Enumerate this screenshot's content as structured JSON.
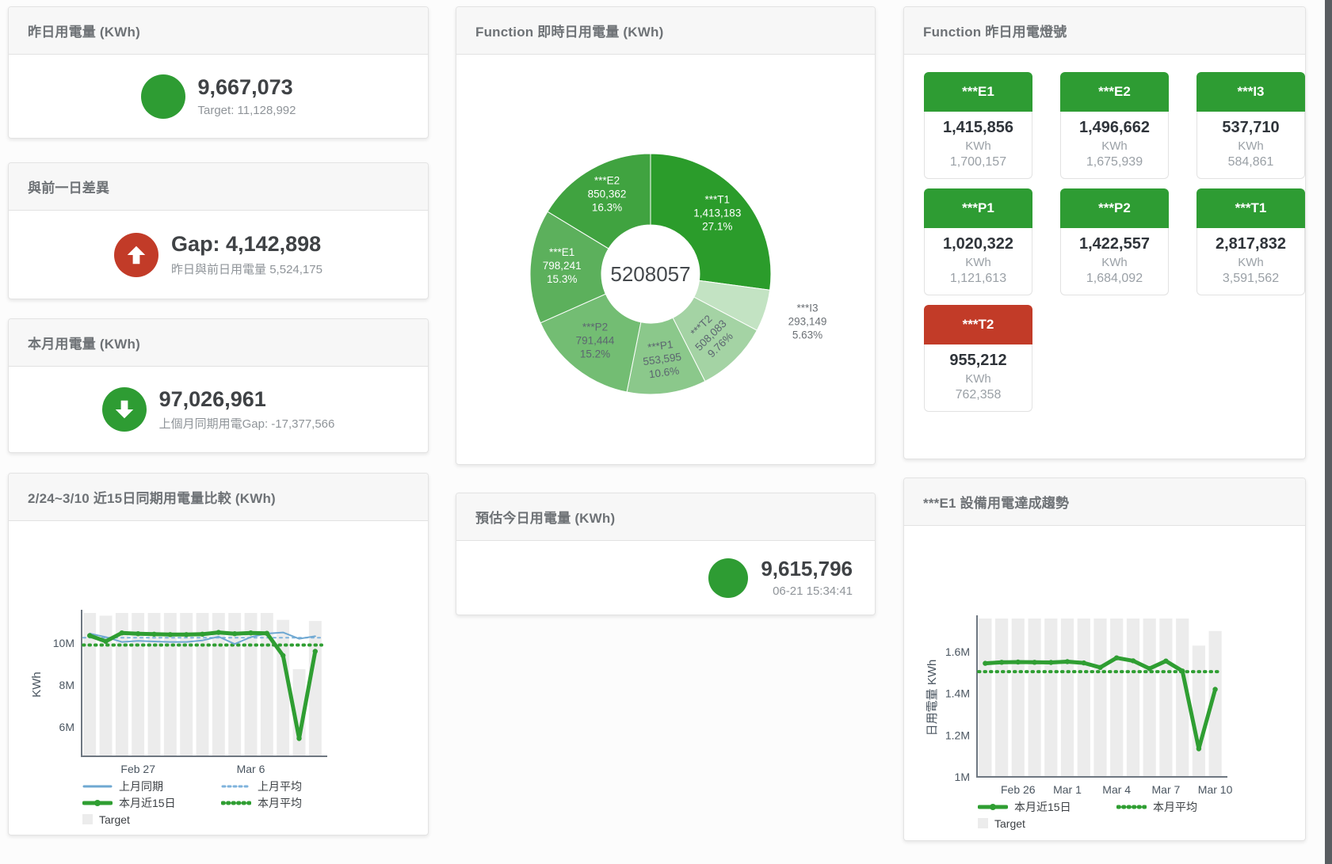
{
  "colors": {
    "green": "#2e9c33",
    "red": "#c23b28",
    "blue_line": "#6fa8d2",
    "blue_dotted": "#7fb3dc",
    "green_line": "#2f9e32",
    "target_bar": "#ececec"
  },
  "cards": {
    "yesterday": {
      "title": "昨日用電量 (KWh)",
      "value": "9,667,073",
      "sub": "Target: 11,128,992"
    },
    "gap": {
      "title": "與前一日差異",
      "value": "Gap: 4,142,898",
      "sub": "昨日與前日用電量 5,524,175"
    },
    "month": {
      "title": "本月用電量 (KWh)",
      "value": "97,026,961",
      "sub": "上個月同期用電Gap: -17,377,566"
    },
    "compare": {
      "title": "2/24~3/10 近15日同期用電量比較 (KWh)"
    },
    "realtime": {
      "title": "Function 即時日用電量 (KWh)",
      "center_total": "5208057"
    },
    "estimate": {
      "title": "預估今日用電量 (KWh)",
      "value": "9,615,796",
      "time": "06-21 15:34:41"
    },
    "lights": {
      "title": "Function 昨日用電燈號",
      "unit": "KWh",
      "tiles": [
        {
          "name": "***E1",
          "value": "1,415,856",
          "target": "1,700,157",
          "status": "green"
        },
        {
          "name": "***E2",
          "value": "1,496,662",
          "target": "1,675,939",
          "status": "green"
        },
        {
          "name": "***I3",
          "value": "537,710",
          "target": "584,861",
          "status": "green"
        },
        {
          "name": "***P1",
          "value": "1,020,322",
          "target": "1,121,613",
          "status": "green"
        },
        {
          "name": "***P2",
          "value": "1,422,557",
          "target": "1,684,092",
          "status": "green"
        },
        {
          "name": "***T1",
          "value": "2,817,832",
          "target": "3,591,562",
          "status": "green"
        },
        {
          "name": "***T2",
          "value": "955,212",
          "target": "762,358",
          "status": "red"
        }
      ]
    },
    "trend": {
      "title": "***E1 設備用電達成趨勢"
    }
  },
  "chart_data": [
    {
      "type": "pie",
      "title": "Function 即時日用電量 (KWh)",
      "center_total": "5208057",
      "slices": [
        {
          "name": "***T1",
          "value": 1413183,
          "pct": "27.1%",
          "color": "#2b9c2b",
          "label_pos": "inside",
          "label_color": "#ffffff"
        },
        {
          "name": "***I3",
          "value": 293149,
          "pct": "5.63%",
          "color": "#c3e3c3",
          "label_pos": "outside",
          "label_color": "#6b7075"
        },
        {
          "name": "***T2",
          "value": 508083,
          "pct": "9.76%",
          "color": "#a4d3a4",
          "label_pos": "inside",
          "label_color": "#5c6670"
        },
        {
          "name": "***P1",
          "value": 553595,
          "pct": "10.6%",
          "color": "#8bc88b",
          "label_pos": "inside",
          "label_color": "#5c6670"
        },
        {
          "name": "***P2",
          "value": 791444,
          "pct": "15.2%",
          "color": "#73bd73",
          "label_pos": "inside",
          "label_color": "#5c6670"
        },
        {
          "name": "***E1",
          "value": 798241,
          "pct": "15.3%",
          "color": "#5cb05c",
          "label_pos": "inside",
          "label_color": "#ffffff"
        },
        {
          "name": "***E2",
          "value": 850362,
          "pct": "16.3%",
          "color": "#40a340",
          "label_pos": "inside",
          "label_color": "#ffffff"
        }
      ]
    },
    {
      "type": "bar",
      "title": "2/24~3/10 近15日同期用電量比較 (KWh)",
      "ylabel": "KWh",
      "y_min": 4600000,
      "y_max": 11430000,
      "y_ticks": [
        {
          "value": 6000000,
          "label": "6M"
        },
        {
          "value": 8000000,
          "label": "8M"
        },
        {
          "value": 10000000,
          "label": "10M"
        }
      ],
      "x_ticks": [
        {
          "index": 3,
          "label": "Feb 27"
        },
        {
          "index": 10,
          "label": "Mar 6"
        }
      ],
      "target_bars": {
        "name": "Target",
        "color": "#ececec",
        "values": [
          11430000,
          11300000,
          11430000,
          11430000,
          11430000,
          11430000,
          11430000,
          11430000,
          11430000,
          11430000,
          11430000,
          11430000,
          11100000,
          8750000,
          11050000
        ]
      },
      "series": [
        {
          "name": "上月同期",
          "color": "#6fa8d2",
          "thick": false,
          "dotted": false,
          "marker": false,
          "values": [
            10450000,
            10280000,
            10050000,
            10100000,
            10070000,
            10050000,
            10050000,
            10120000,
            10300000,
            9950000,
            10280000,
            10450000,
            10500000,
            10200000,
            10320000
          ]
        },
        {
          "name": "上月平均",
          "color": "#7fb3dc",
          "thick": false,
          "dotted": true,
          "constant": 10250000
        },
        {
          "name": "本月近15日",
          "color": "#2f9e32",
          "thick": true,
          "dotted": false,
          "marker": true,
          "values": [
            10350000,
            10080000,
            10480000,
            10440000,
            10420000,
            10400000,
            10400000,
            10420000,
            10500000,
            10440000,
            10480000,
            10460000,
            9400000,
            5450000,
            9600000
          ]
        },
        {
          "name": "本月平均",
          "color": "#2f9e32",
          "thick": true,
          "dotted": true,
          "constant": 9900000
        }
      ],
      "legend": [
        [
          {
            "label": "上月同期",
            "swatch": "line",
            "color": "#6fa8d2",
            "thick": false,
            "dotted": false
          },
          {
            "label": "上月平均",
            "swatch": "line",
            "color": "#7fb3dc",
            "thick": false,
            "dotted": true
          }
        ],
        [
          {
            "label": "本月近15日",
            "swatch": "line",
            "color": "#2f9e32",
            "thick": true,
            "dotted": false
          },
          {
            "label": "本月平均",
            "swatch": "line",
            "color": "#2f9e32",
            "thick": true,
            "dotted": true
          }
        ],
        [
          {
            "label": "Target",
            "swatch": "box",
            "color": "#ececec"
          }
        ]
      ]
    },
    {
      "type": "bar",
      "title": "***E1 設備用電達成趨勢",
      "ylabel": "日用電量 KWh",
      "y_min": 1000000,
      "y_max": 1760000,
      "y_ticks": [
        {
          "value": 1000000,
          "label": "1M"
        },
        {
          "value": 1200000,
          "label": "1.2M"
        },
        {
          "value": 1400000,
          "label": "1.4M"
        },
        {
          "value": 1600000,
          "label": "1.6M"
        }
      ],
      "x_ticks": [
        {
          "index": 2,
          "label": "Feb 26"
        },
        {
          "index": 5,
          "label": "Mar 1"
        },
        {
          "index": 8,
          "label": "Mar 4"
        },
        {
          "index": 11,
          "label": "Mar 7"
        },
        {
          "index": 14,
          "label": "Mar 10"
        }
      ],
      "target_bars": {
        "name": "Target",
        "color": "#ececec",
        "values": [
          1760000,
          1760000,
          1760000,
          1760000,
          1760000,
          1760000,
          1760000,
          1760000,
          1760000,
          1760000,
          1760000,
          1760000,
          1760000,
          1630000,
          1700000
        ]
      },
      "series": [
        {
          "name": "本月近15日",
          "color": "#2f9e32",
          "thick": true,
          "dotted": false,
          "marker": true,
          "values": [
            1545000,
            1550000,
            1551000,
            1550000,
            1549000,
            1553000,
            1547000,
            1525000,
            1571000,
            1557000,
            1520000,
            1556000,
            1508000,
            1135000,
            1420000
          ]
        },
        {
          "name": "本月平均",
          "color": "#2f9e32",
          "thick": true,
          "dotted": true,
          "constant": 1505000
        }
      ],
      "legend": [
        [
          {
            "label": "本月近15日",
            "swatch": "line",
            "color": "#2f9e32",
            "thick": true,
            "dotted": false
          },
          {
            "label": "本月平均",
            "swatch": "line",
            "color": "#2f9e32",
            "thick": true,
            "dotted": true
          }
        ],
        [
          {
            "label": "Target",
            "swatch": "box",
            "color": "#ececec"
          }
        ]
      ]
    }
  ]
}
